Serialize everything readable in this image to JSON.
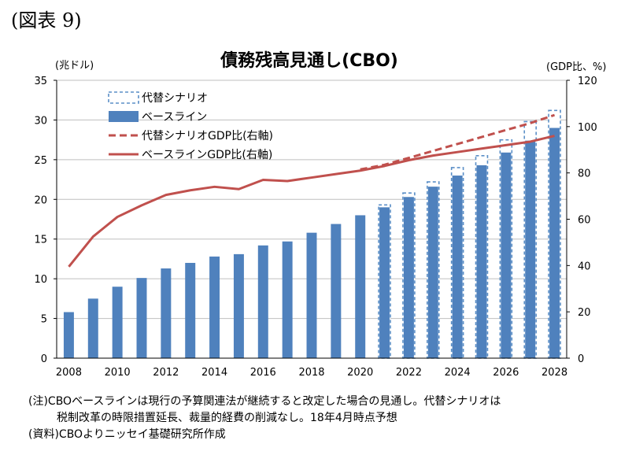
{
  "figure_label": "(図表 9)",
  "notes": {
    "note_line1": "(注)CBOベースラインは現行の予算関連法が継続すると改定した場合の見通し。代替シナリオは",
    "note_line2": "税制改革の時限措置延長、裁量的経費の削減なし。18年4月時点予想",
    "source": "(資料)CBOよりニッセイ基礎研究所作成"
  },
  "chart_data": {
    "type": "bar",
    "title": "債務残高見通し(CBO)",
    "y_left_label": "(兆ドル)",
    "y_right_label": "(GDP比、%)",
    "y_left_range": [
      0,
      35
    ],
    "y_left_ticks": [
      0,
      5,
      10,
      15,
      20,
      25,
      30,
      35
    ],
    "y_right_range": [
      0,
      120
    ],
    "y_right_ticks": [
      0,
      20,
      40,
      60,
      80,
      100,
      120
    ],
    "x": [
      2008,
      2009,
      2010,
      2011,
      2012,
      2013,
      2014,
      2015,
      2016,
      2017,
      2018,
      2019,
      2020,
      2021,
      2022,
      2023,
      2024,
      2025,
      2026,
      2027,
      2028
    ],
    "x_tick_labels": [
      "2008",
      "2010",
      "2012",
      "2014",
      "2016",
      "2018",
      "2020",
      "2022",
      "2024",
      "2026",
      "2028"
    ],
    "grid": "horizontal",
    "legend_position": "top-left",
    "series": [
      {
        "name": "代替シナリオ",
        "kind": "bar-dashed",
        "axis": "left",
        "color": "#5b8fc7",
        "values": [
          null,
          null,
          null,
          null,
          null,
          null,
          null,
          null,
          null,
          null,
          null,
          null,
          null,
          19.3,
          20.8,
          22.2,
          24.0,
          25.5,
          27.5,
          29.8,
          31.2
        ]
      },
      {
        "name": "ベースライン",
        "kind": "bar",
        "axis": "left",
        "color": "#4f81bd",
        "values": [
          5.8,
          7.5,
          9.0,
          10.1,
          11.3,
          12.0,
          12.8,
          13.1,
          14.2,
          14.7,
          15.8,
          16.9,
          18.0,
          19.0,
          20.3,
          21.6,
          23.0,
          24.3,
          25.9,
          27.4,
          29.0
        ]
      },
      {
        "name": "代替シナリオGDP比(右軸)",
        "kind": "line-dashed",
        "axis": "right",
        "color": "#c0504d",
        "values": [
          null,
          null,
          null,
          null,
          null,
          null,
          null,
          null,
          null,
          null,
          null,
          null,
          81.5,
          83.5,
          86.5,
          89.5,
          92.5,
          95.5,
          98.5,
          101.5,
          105.0
        ]
      },
      {
        "name": "ベースラインGDP比(右軸)",
        "kind": "line",
        "axis": "right",
        "color": "#c0504d",
        "values": [
          39.5,
          52.5,
          61.0,
          66.0,
          70.5,
          72.5,
          74.0,
          73.0,
          77.0,
          76.5,
          78.0,
          79.5,
          81.0,
          83.0,
          85.5,
          87.5,
          89.0,
          90.5,
          92.0,
          93.5,
          96.0
        ]
      }
    ]
  }
}
